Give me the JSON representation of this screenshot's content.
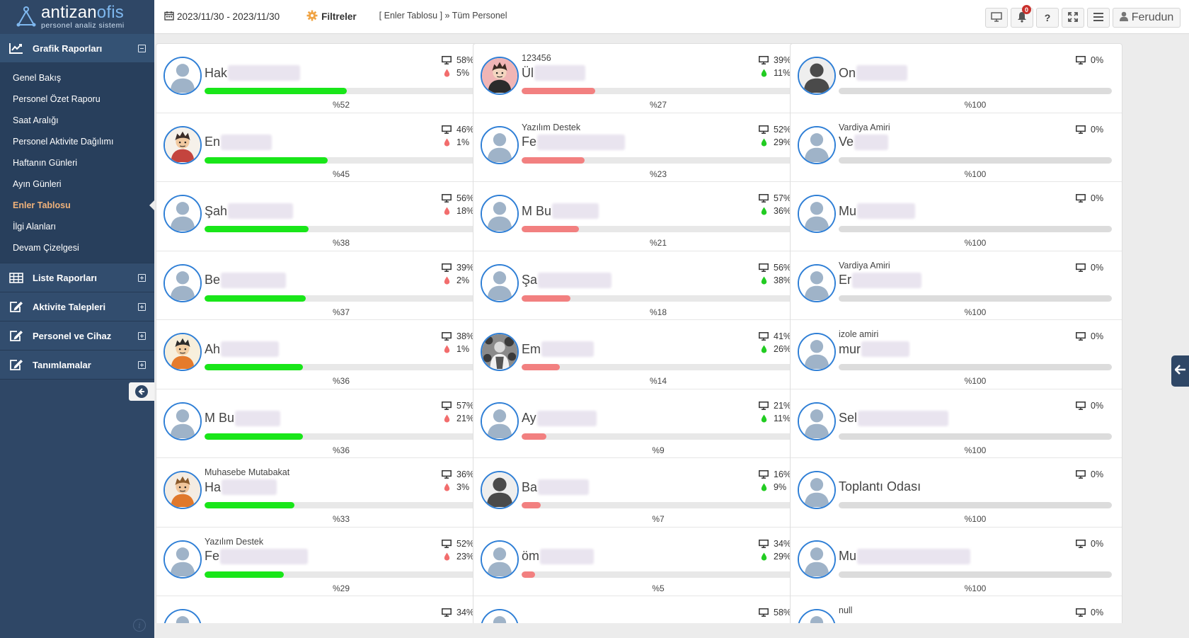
{
  "brand": {
    "name_a": "antizan",
    "name_b": "ofis",
    "subtitle": "personel analiz sistemi"
  },
  "sidebar": {
    "groups": [
      {
        "label": "Grafik Raporları",
        "icon": "line-chart-icon",
        "open": true,
        "items": [
          {
            "label": "Genel Bakış"
          },
          {
            "label": "Personel Özet Raporu"
          },
          {
            "label": "Saat Aralığı"
          },
          {
            "label": "Personel Aktivite Dağılımı"
          },
          {
            "label": "Haftanın Günleri"
          },
          {
            "label": "Ayın Günleri"
          },
          {
            "label": "Enler Tablosu",
            "active": true
          },
          {
            "label": "İlgi Alanları"
          },
          {
            "label": "Devam Çizelgesi"
          }
        ]
      },
      {
        "label": "Liste Raporları",
        "icon": "table-icon",
        "open": false
      },
      {
        "label": "Aktivite Talepleri",
        "icon": "edit-icon",
        "open": false
      },
      {
        "label": "Personel ve Cihaz",
        "icon": "edit-icon",
        "open": false
      },
      {
        "label": "Tanımlamalar",
        "icon": "edit-icon",
        "open": false
      }
    ]
  },
  "header": {
    "date_range": "2023/11/30 - 2023/11/30",
    "filter_label": "Filtreler",
    "breadcrumb": "[ Enler Tablosu ] » Tüm Personel",
    "notification_count": "0",
    "help_label": "?",
    "user_name": "Ferudun"
  },
  "colors": {
    "green": "#19e619",
    "red": "#f28080",
    "gray": "#dcdcdc",
    "blue": "#2f7fd6",
    "sidebar": "#2f4766"
  },
  "columns": [
    {
      "bar_color": "#19e619",
      "second_icon": "drop-red-icon",
      "cards": [
        {
          "dept": "",
          "name": "Hak",
          "blur_w": 102,
          "avatar": "default",
          "screen": "58%",
          "second": "5%",
          "progress": 52,
          "label": "%52"
        },
        {
          "dept": "",
          "name": "En",
          "blur_w": 72,
          "avatar": "cartoon-a",
          "screen": "46%",
          "second": "1%",
          "progress": 45,
          "label": "%45"
        },
        {
          "dept": "",
          "name": "Şah",
          "blur_w": 92,
          "avatar": "default",
          "screen": "56%",
          "second": "18%",
          "progress": 38,
          "label": "%38"
        },
        {
          "dept": "",
          "name": "Be",
          "blur_w": 92,
          "avatar": "default",
          "screen": "39%",
          "second": "2%",
          "progress": 37,
          "label": "%37"
        },
        {
          "dept": "",
          "name": "Ah",
          "blur_w": 82,
          "avatar": "cartoon-b",
          "screen": "38%",
          "second": "1%",
          "progress": 36,
          "label": "%36"
        },
        {
          "dept": "",
          "name": "M Bu",
          "blur_w": 64,
          "avatar": "default",
          "screen": "57%",
          "second": "21%",
          "progress": 36,
          "label": "%36"
        },
        {
          "dept": "Muhasebe Mutabakat",
          "name": "Ha",
          "blur_w": 78,
          "avatar": "cartoon-c",
          "screen": "36%",
          "second": "3%",
          "progress": 33,
          "label": "%33"
        },
        {
          "dept": "Yazılım Destek",
          "name": "Fe",
          "blur_w": 124,
          "avatar": "default",
          "screen": "52%",
          "second": "23%",
          "progress": 29,
          "label": "%29"
        },
        {
          "dept": "",
          "name": "",
          "blur_w": 0,
          "avatar": "default",
          "screen": "34%",
          "second": "",
          "progress": 0,
          "label": ""
        }
      ]
    },
    {
      "bar_color": "#f28080",
      "second_icon": "drop-green-icon",
      "cards": [
        {
          "dept": "123456",
          "name": "Ül",
          "blur_w": 72,
          "avatar": "cartoon-d",
          "screen": "39%",
          "second": "11%",
          "progress": 27,
          "label": "%27"
        },
        {
          "dept": "Yazılım Destek",
          "name": "Fe",
          "blur_w": 124,
          "avatar": "default",
          "screen": "52%",
          "second": "29%",
          "progress": 23,
          "label": "%23"
        },
        {
          "dept": "",
          "name": "M Bu",
          "blur_w": 66,
          "avatar": "default",
          "screen": "57%",
          "second": "36%",
          "progress": 21,
          "label": "%21"
        },
        {
          "dept": "",
          "name": "Şa",
          "blur_w": 104,
          "avatar": "default",
          "screen": "56%",
          "second": "38%",
          "progress": 18,
          "label": "%18"
        },
        {
          "dept": "",
          "name": "Em",
          "blur_w": 74,
          "avatar": "photo",
          "screen": "41%",
          "second": "26%",
          "progress": 14,
          "label": "%14"
        },
        {
          "dept": "",
          "name": "Ay",
          "blur_w": 84,
          "avatar": "default",
          "screen": "21%",
          "second": "11%",
          "progress": 9,
          "label": "%9"
        },
        {
          "dept": "",
          "name": "Ba",
          "blur_w": 72,
          "avatar": "silhouette",
          "screen": "16%",
          "second": "9%",
          "progress": 7,
          "label": "%7"
        },
        {
          "dept": "",
          "name": "öm",
          "blur_w": 76,
          "avatar": "default",
          "screen": "34%",
          "second": "29%",
          "progress": 5,
          "label": "%5"
        },
        {
          "dept": "",
          "name": "",
          "blur_w": 0,
          "avatar": "default",
          "screen": "58%",
          "second": "",
          "progress": 0,
          "label": ""
        }
      ]
    },
    {
      "bar_color": "#dcdcdc",
      "second_icon": "",
      "cards": [
        {
          "dept": "",
          "name": "On",
          "blur_w": 72,
          "avatar": "silhouette",
          "screen": "0%",
          "second": "",
          "progress": 100,
          "label": "%100"
        },
        {
          "dept": "Vardiya Amiri",
          "name": "Ve",
          "blur_w": 48,
          "avatar": "default",
          "screen": "0%",
          "second": "",
          "progress": 100,
          "label": "%100"
        },
        {
          "dept": "",
          "name": "Mu",
          "blur_w": 82,
          "avatar": "default",
          "screen": "0%",
          "second": "",
          "progress": 100,
          "label": "%100"
        },
        {
          "dept": "Vardiya Amiri",
          "name": "Er",
          "blur_w": 98,
          "avatar": "default",
          "screen": "0%",
          "second": "",
          "progress": 100,
          "label": "%100"
        },
        {
          "dept": "izole amiri",
          "name": "mur",
          "blur_w": 68,
          "avatar": "default",
          "screen": "0%",
          "second": "",
          "progress": 100,
          "label": "%100"
        },
        {
          "dept": "",
          "name": "Sel",
          "blur_w": 128,
          "avatar": "default",
          "screen": "0%",
          "second": "",
          "progress": 100,
          "label": "%100"
        },
        {
          "dept": "",
          "name": "Toplantı Odası",
          "blur_w": 0,
          "avatar": "default",
          "screen": "0%",
          "second": "",
          "progress": 100,
          "label": "%100"
        },
        {
          "dept": "",
          "name": "Mu",
          "blur_w": 160,
          "avatar": "default",
          "screen": "0%",
          "second": "",
          "progress": 100,
          "label": "%100"
        },
        {
          "dept": "null",
          "name": "",
          "blur_w": 0,
          "avatar": "default",
          "screen": "0%",
          "second": "",
          "progress": 0,
          "label": ""
        }
      ]
    }
  ]
}
